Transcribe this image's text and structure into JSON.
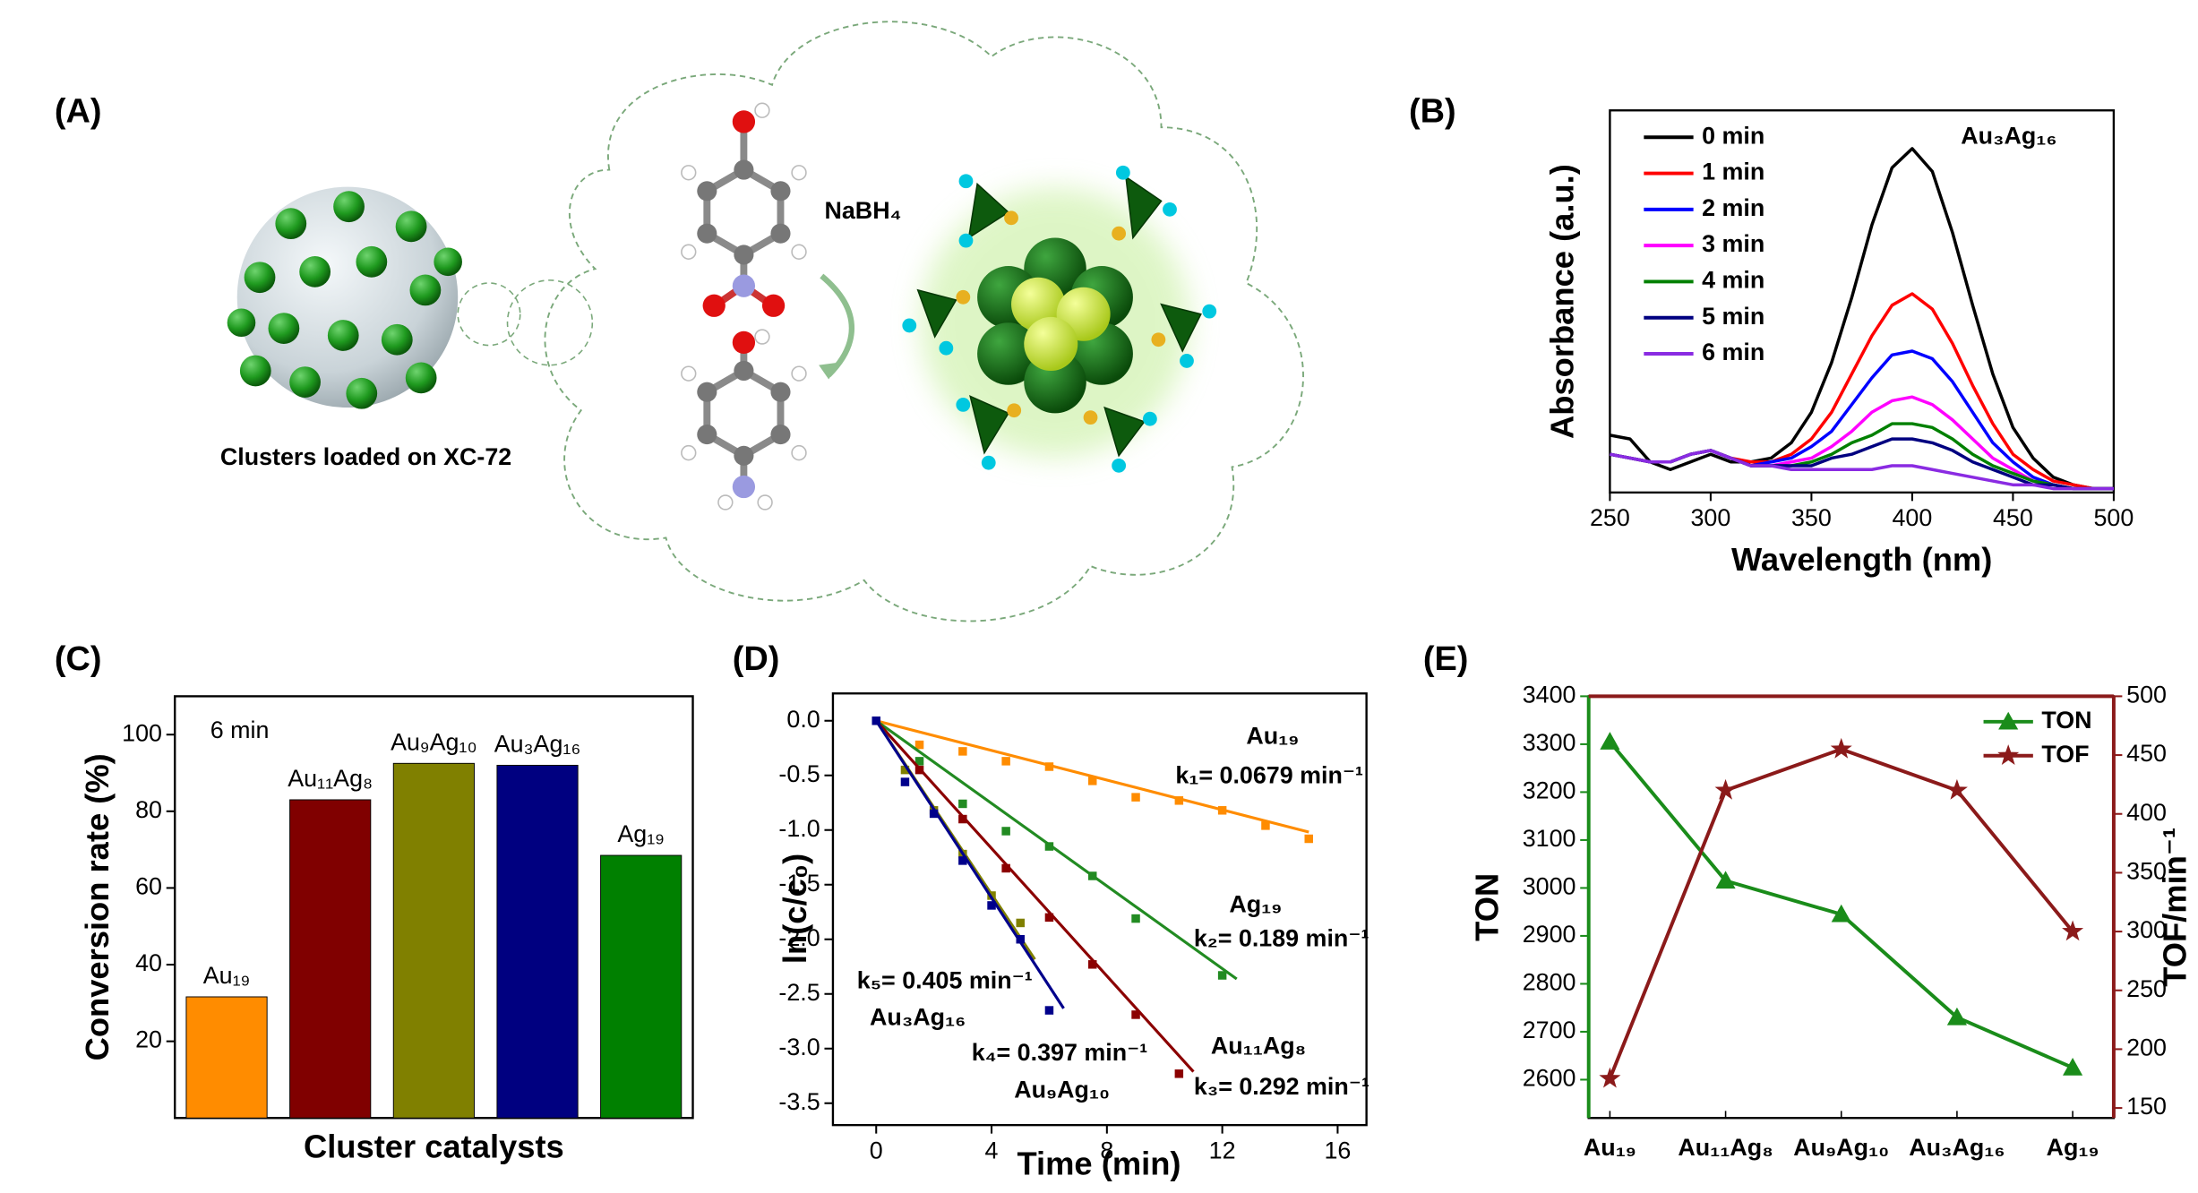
{
  "panel_a": {
    "label": "(A)",
    "caption": "Clusters loaded on XC-72",
    "reagent": "NaBH₄"
  },
  "chart_data": [
    {
      "type": "line",
      "panel": "(B)",
      "annotation": "Au₃Ag₁₆",
      "x_label": "Wavelength (nm)",
      "y_label": "Absorbance (a.u.)",
      "x": [
        250,
        260,
        270,
        280,
        290,
        300,
        310,
        320,
        330,
        340,
        350,
        360,
        370,
        380,
        390,
        400,
        410,
        420,
        430,
        440,
        450,
        460,
        470,
        480,
        490,
        500
      ],
      "xlim": [
        250,
        500
      ],
      "xticks": [
        250,
        300,
        350,
        400,
        450,
        500
      ],
      "ylim": [
        0,
        1
      ],
      "legend": "upper-left",
      "series": [
        {
          "name": "0 min",
          "color": "#000000",
          "values": [
            0.15,
            0.14,
            0.08,
            0.06,
            0.08,
            0.1,
            0.08,
            0.08,
            0.09,
            0.13,
            0.21,
            0.34,
            0.51,
            0.7,
            0.85,
            0.9,
            0.84,
            0.68,
            0.49,
            0.31,
            0.17,
            0.09,
            0.04,
            0.02,
            0.01,
            0.01
          ]
        },
        {
          "name": "1 min",
          "color": "#ff0000",
          "values": [
            0.1,
            0.09,
            0.08,
            0.08,
            0.1,
            0.11,
            0.09,
            0.08,
            0.08,
            0.1,
            0.14,
            0.21,
            0.31,
            0.41,
            0.49,
            0.52,
            0.48,
            0.39,
            0.28,
            0.18,
            0.1,
            0.06,
            0.03,
            0.02,
            0.01,
            0.01
          ]
        },
        {
          "name": "2 min",
          "color": "#0000ff",
          "values": [
            0.1,
            0.09,
            0.08,
            0.08,
            0.1,
            0.11,
            0.09,
            0.07,
            0.08,
            0.09,
            0.12,
            0.16,
            0.23,
            0.3,
            0.36,
            0.37,
            0.35,
            0.29,
            0.21,
            0.13,
            0.08,
            0.04,
            0.02,
            0.01,
            0.01,
            0.01
          ]
        },
        {
          "name": "3 min",
          "color": "#ff00ff",
          "values": [
            0.1,
            0.09,
            0.08,
            0.08,
            0.1,
            0.11,
            0.09,
            0.07,
            0.07,
            0.08,
            0.09,
            0.12,
            0.16,
            0.21,
            0.24,
            0.25,
            0.23,
            0.19,
            0.14,
            0.09,
            0.06,
            0.03,
            0.02,
            0.01,
            0.01,
            0.01
          ]
        },
        {
          "name": "4 min",
          "color": "#008000",
          "values": [
            0.1,
            0.09,
            0.08,
            0.08,
            0.1,
            0.11,
            0.09,
            0.07,
            0.07,
            0.07,
            0.08,
            0.1,
            0.13,
            0.15,
            0.18,
            0.18,
            0.17,
            0.14,
            0.1,
            0.07,
            0.05,
            0.03,
            0.02,
            0.01,
            0.01,
            0.01
          ]
        },
        {
          "name": "5 min",
          "color": "#000080",
          "values": [
            0.1,
            0.09,
            0.08,
            0.08,
            0.1,
            0.11,
            0.09,
            0.07,
            0.07,
            0.07,
            0.07,
            0.09,
            0.1,
            0.12,
            0.14,
            0.14,
            0.13,
            0.11,
            0.08,
            0.06,
            0.04,
            0.02,
            0.02,
            0.01,
            0.01,
            0.01
          ]
        },
        {
          "name": "6 min",
          "color": "#8a2be2",
          "values": [
            0.1,
            0.09,
            0.08,
            0.08,
            0.1,
            0.11,
            0.09,
            0.07,
            0.07,
            0.06,
            0.06,
            0.06,
            0.06,
            0.06,
            0.07,
            0.07,
            0.06,
            0.05,
            0.04,
            0.03,
            0.02,
            0.02,
            0.01,
            0.01,
            0.01,
            0.01
          ]
        }
      ]
    },
    {
      "type": "bar",
      "panel": "(C)",
      "annotation": "6 min",
      "x_label": "Cluster catalysts",
      "y_label": "Conversion rate (%)",
      "categories": [
        "Au₁₉",
        "Au₁₁Ag₈",
        "Au₉Ag₁₀",
        "Au₃Ag₁₆",
        "Ag₁₉"
      ],
      "values": [
        31.6,
        83,
        92.5,
        92,
        68.5
      ],
      "colors": [
        "#ff8c00",
        "#800000",
        "#808000",
        "#000080",
        "#008000"
      ],
      "ylim": [
        0,
        110
      ],
      "yticks": [
        20,
        40,
        60,
        80,
        100
      ]
    },
    {
      "type": "scatter",
      "panel": "(D)",
      "x_label": "Time (min)",
      "y_label": "ln(c/c₀)",
      "xlim": [
        -1.5,
        17
      ],
      "xticks": [
        0,
        4,
        8,
        12,
        16
      ],
      "ylim": [
        -3.7,
        0.25
      ],
      "yticks": [
        {
          "value": 0,
          "label": "0.0"
        },
        -0.5,
        {
          "value": -1,
          "label": "-1.0"
        },
        -1.5,
        {
          "value": -2,
          "label": "-2.0"
        },
        -2.5,
        {
          "value": -3,
          "label": "-3.0"
        },
        -3.5
      ],
      "series": [
        {
          "name": "Au₁₉",
          "color": "#ff8c00",
          "x": [
            0,
            1.5,
            3,
            4.5,
            6,
            7.5,
            9,
            10.5,
            12,
            13.5,
            15
          ],
          "values": [
            0,
            -0.22,
            -0.28,
            -0.37,
            -0.42,
            -0.55,
            -0.7,
            -0.73,
            -0.82,
            -0.96,
            -1.08
          ],
          "fit": {
            "label": "k₁= 0.0679 min⁻¹",
            "k": 0.0679,
            "x": [
              0,
              15
            ]
          }
        },
        {
          "name": "Ag₁₉",
          "color": "#228b22",
          "x": [
            0,
            1.5,
            3,
            4.5,
            6,
            7.5,
            9,
            12
          ],
          "values": [
            0,
            -0.37,
            -0.76,
            -1.01,
            -1.15,
            -1.42,
            -1.81,
            -2.33
          ],
          "fit": {
            "label": "k₂= 0.189 min⁻¹",
            "k": 0.189,
            "x": [
              0,
              12.5
            ]
          }
        },
        {
          "name": "Au₁₁Ag₈",
          "color": "#8b0000",
          "x": [
            0,
            1.5,
            3,
            4.5,
            6,
            7.5,
            9,
            10.5
          ],
          "values": [
            0,
            -0.45,
            -0.9,
            -1.35,
            -1.8,
            -2.23,
            -2.69,
            -3.23
          ],
          "fit": {
            "label": "k₃= 0.292 min⁻¹",
            "k": 0.292,
            "x": [
              0,
              11
            ]
          }
        },
        {
          "name": "Au₉Ag₁₀",
          "color": "#808000",
          "x": [
            0,
            1,
            2,
            3,
            4,
            5
          ],
          "values": [
            0,
            -0.45,
            -0.82,
            -1.22,
            -1.6,
            -1.85
          ],
          "fit": {
            "label": "k₄= 0.397 min⁻¹",
            "k": 0.397,
            "x": [
              0,
              5.5
            ]
          }
        },
        {
          "name": "Au₃Ag₁₆",
          "color": "#00008b",
          "x": [
            0,
            1,
            2,
            3,
            4,
            5,
            6
          ],
          "values": [
            0,
            -0.56,
            -0.85,
            -1.28,
            -1.69,
            -2.0,
            -2.65
          ],
          "fit": {
            "label": "k₅= 0.405 min⁻¹",
            "k": 0.405,
            "x": [
              0,
              6.5
            ]
          }
        }
      ]
    },
    {
      "type": "line",
      "panel": "(E)",
      "y_label": "TON",
      "y2_label": "TOF/min⁻¹",
      "categories": [
        "Au₁₉",
        "Au₁₁Ag₈",
        "Au₉Ag₁₀",
        "Au₃Ag₁₆",
        "Ag₁₉"
      ],
      "category_colors": [
        "#ff8c00",
        "#8b4513",
        "#808000",
        "#1f3a93",
        "#2e6b2e"
      ],
      "ylim": [
        2520,
        3400
      ],
      "yticks": [
        2600,
        2700,
        2800,
        2900,
        3000,
        3100,
        3200,
        3300,
        3400
      ],
      "y2lim": [
        141.5,
        500
      ],
      "y2ticks": [
        150,
        200,
        250,
        300,
        350,
        400,
        450,
        500
      ],
      "legend": "upper-right",
      "series": [
        {
          "name": "TON",
          "color": "#1a8c1a",
          "marker": "triangle",
          "values": [
            3305,
            3015,
            2945,
            2730,
            2625
          ]
        },
        {
          "name": "TOF",
          "color": "#8b1a1a",
          "marker": "star",
          "axis": "y2",
          "values": [
            175,
            420,
            455,
            420,
            300
          ]
        }
      ]
    }
  ]
}
